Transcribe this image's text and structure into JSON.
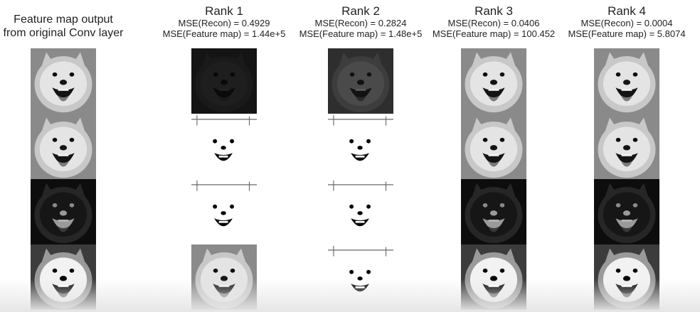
{
  "columns": [
    {
      "id": "original",
      "title_lines": [
        "Feature map output",
        "from original Conv layer"
      ],
      "tiles": [
        {
          "render": "gray"
        },
        {
          "render": "gray"
        },
        {
          "render": "edge"
        },
        {
          "render": "contrast"
        }
      ]
    },
    {
      "id": "rank1",
      "title": "Rank 1",
      "mse_recon": "MSE(Recon) = 0.4929",
      "mse_feature": "MSE(Feature map) = 1.44e+5",
      "tiles": [
        {
          "render": "dark"
        },
        {
          "render": "white"
        },
        {
          "render": "white"
        },
        {
          "render": "gray"
        }
      ]
    },
    {
      "id": "rank2",
      "title": "Rank 2",
      "mse_recon": "MSE(Recon) = 0.2824",
      "mse_feature": "MSE(Feature map) = 1.48e+5",
      "tiles": [
        {
          "render": "dim"
        },
        {
          "render": "white"
        },
        {
          "render": "white"
        },
        {
          "render": "white"
        }
      ]
    },
    {
      "id": "rank3",
      "title": "Rank 3",
      "mse_recon": "MSE(Recon) = 0.0406",
      "mse_feature": "MSE(Feature map) = 100.452",
      "tiles": [
        {
          "render": "gray"
        },
        {
          "render": "gray"
        },
        {
          "render": "edge"
        },
        {
          "render": "contrast"
        }
      ]
    },
    {
      "id": "rank4",
      "title": "Rank 4",
      "mse_recon": "MSE(Recon) = 0.0004",
      "mse_feature": "MSE(Feature map) = 5.8074",
      "tiles": [
        {
          "render": "gray"
        },
        {
          "render": "gray"
        },
        {
          "render": "edge"
        },
        {
          "render": "contrast"
        }
      ]
    }
  ]
}
